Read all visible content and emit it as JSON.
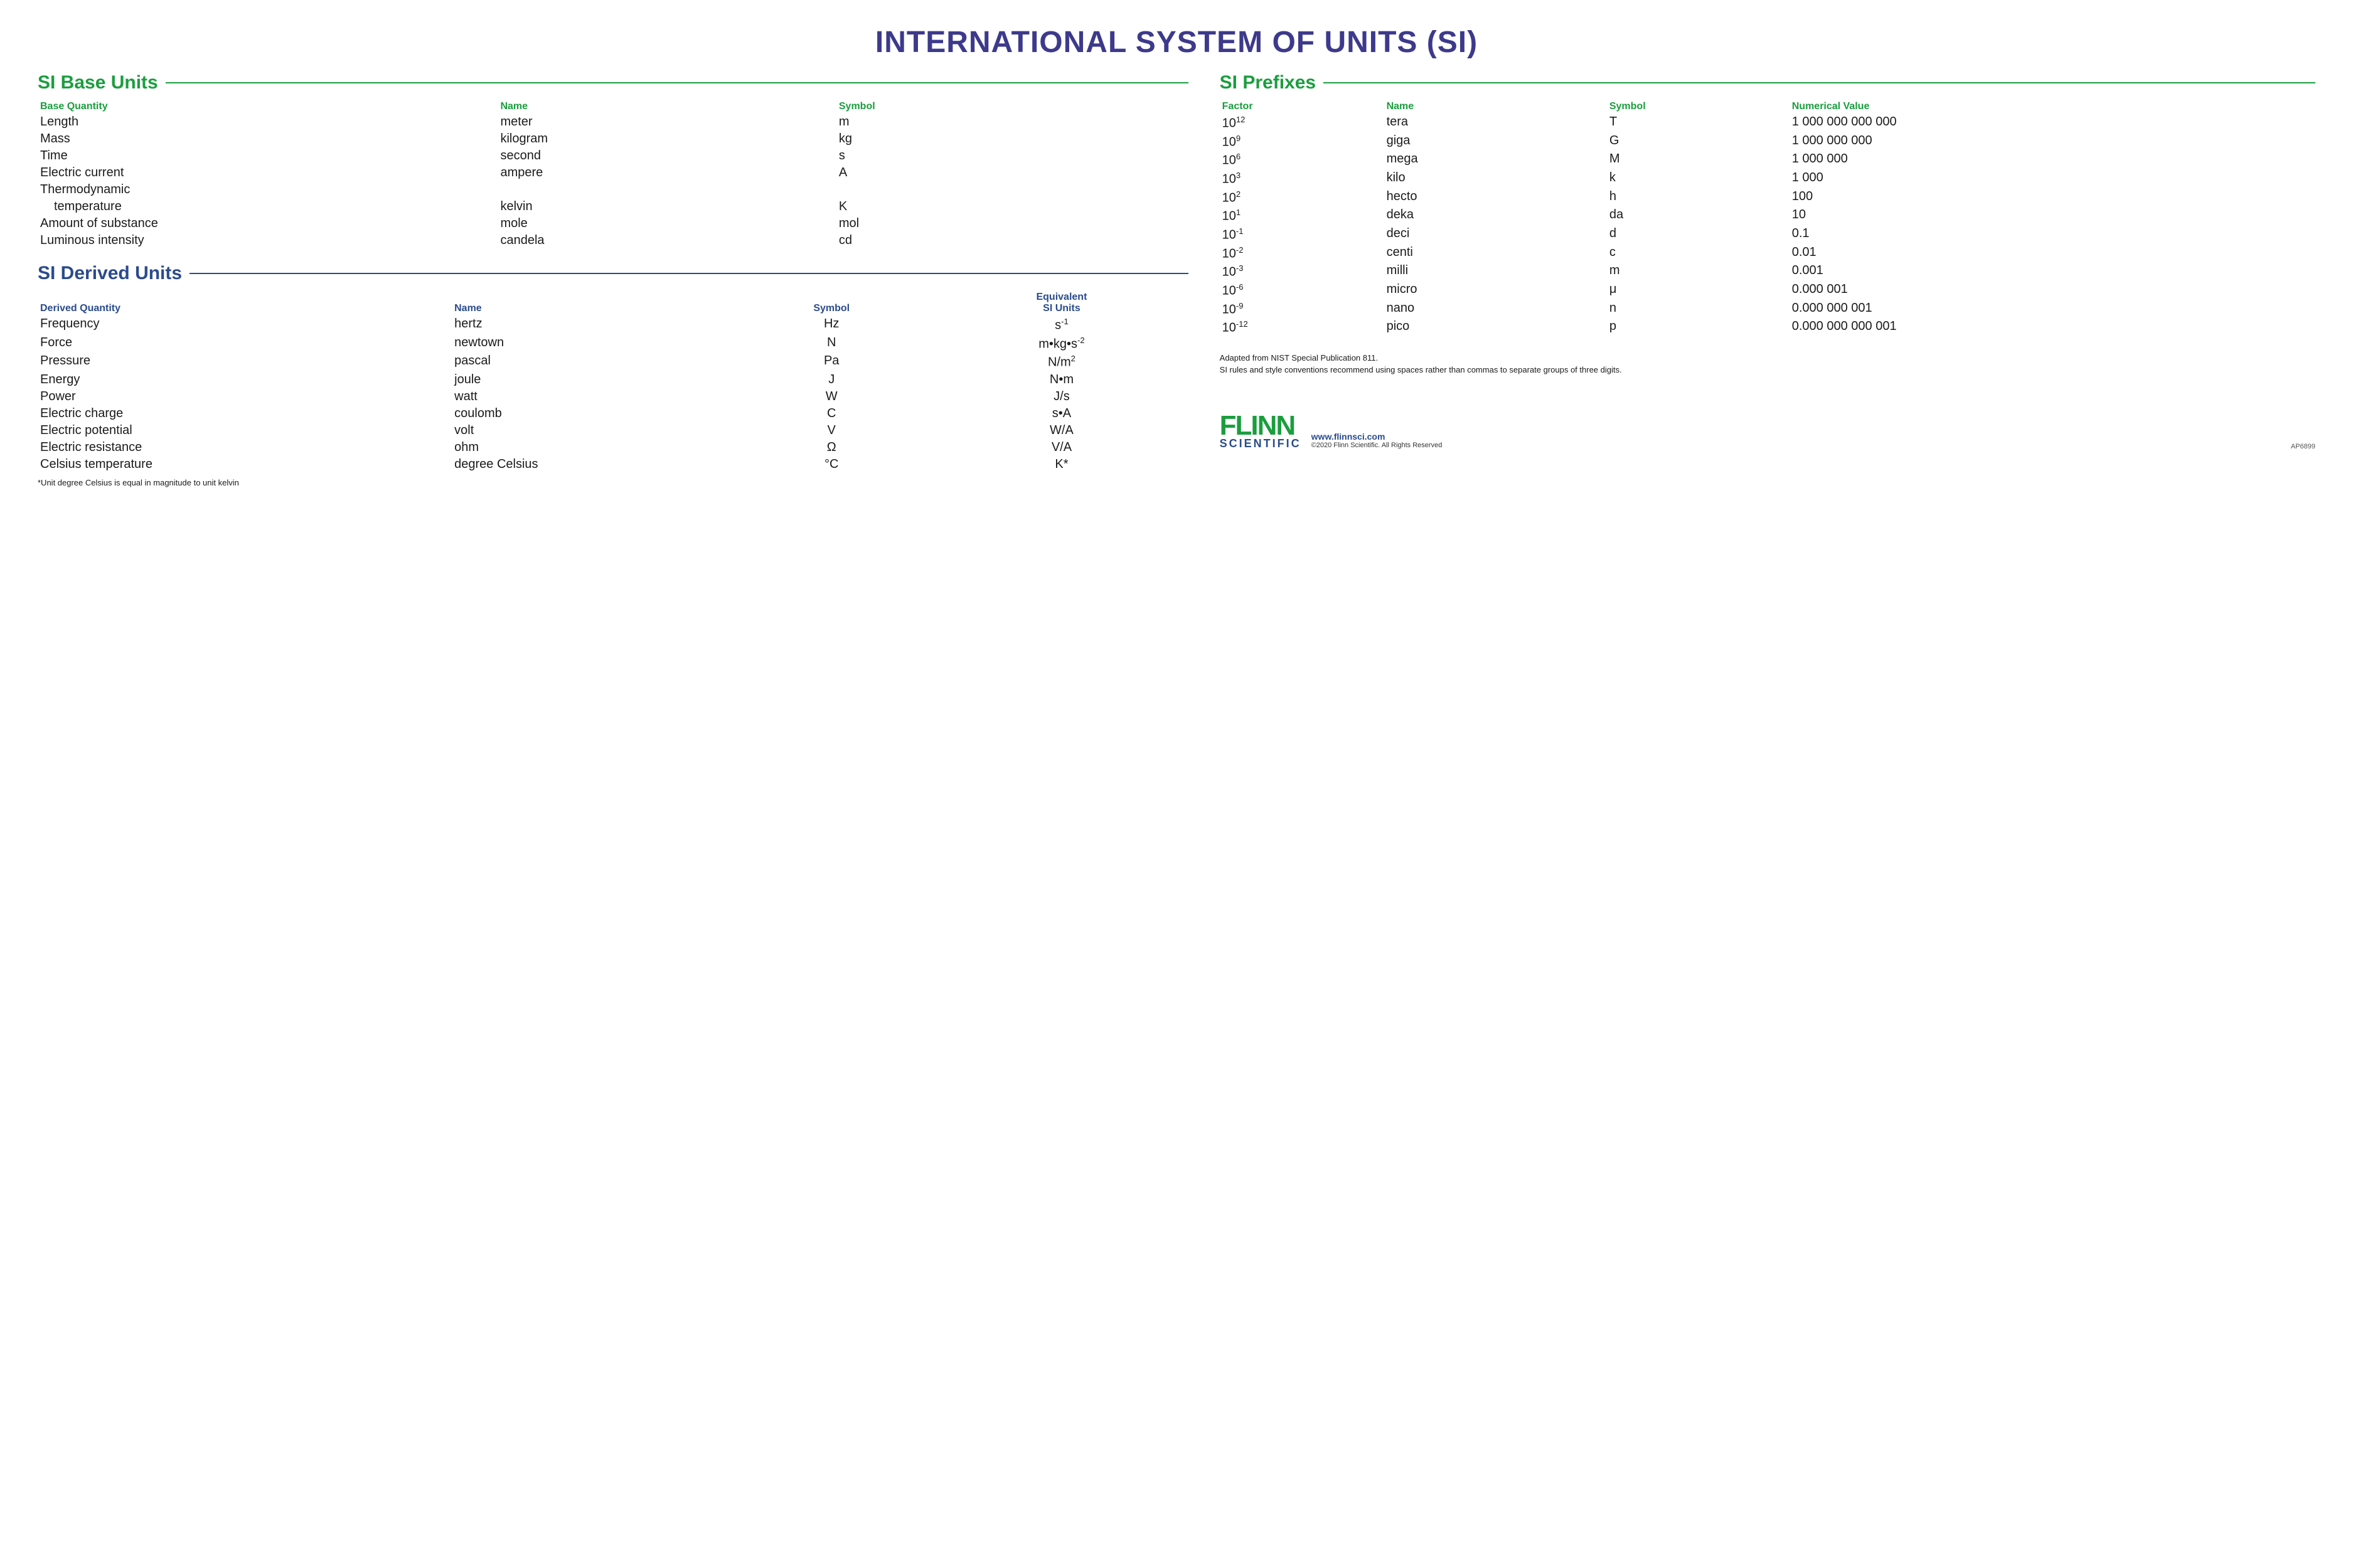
{
  "colors": {
    "title": "#3d3a8c",
    "green": "#1a9e3e",
    "blue": "#2a4b8d",
    "text": "#1a1a1a",
    "background": "#ffffff"
  },
  "title": "INTERNATIONAL SYSTEM OF UNITS (SI)",
  "baseUnits": {
    "heading": "SI Base Units",
    "columns": [
      "Base Quantity",
      "Name",
      "Symbol"
    ],
    "rows": [
      {
        "qty": "Length",
        "name": "meter",
        "sym": "m"
      },
      {
        "qty": "Mass",
        "name": "kilogram",
        "sym": "kg"
      },
      {
        "qty": "Time",
        "name": "second",
        "sym": "s"
      },
      {
        "qty": "Electric current",
        "name": "ampere",
        "sym": "A"
      },
      {
        "qty": "Thermodynamic",
        "qty2": "temperature",
        "name": "kelvin",
        "sym": "K"
      },
      {
        "qty": "Amount of substance",
        "name": "mole",
        "sym": "mol"
      },
      {
        "qty": "Luminous intensity",
        "name": "candela",
        "sym": "cd"
      }
    ]
  },
  "derivedUnits": {
    "heading": "SI Derived Units",
    "columns": [
      "Derived Quantity",
      "Name",
      "Symbol",
      "Equivalent SI Units"
    ],
    "rows": [
      {
        "qty": "Frequency",
        "name": "hertz",
        "sym": "Hz",
        "equiv": "s<sup>-1</sup>"
      },
      {
        "qty": "Force",
        "name": "newtown",
        "sym": "N",
        "equiv": "m•kg•s<sup>-2</sup>"
      },
      {
        "qty": "Pressure",
        "name": "pascal",
        "sym": "Pa",
        "equiv": "N/m<sup>2</sup>"
      },
      {
        "qty": "Energy",
        "name": "joule",
        "sym": "J",
        "equiv": "N•m"
      },
      {
        "qty": "Power",
        "name": "watt",
        "sym": "W",
        "equiv": "J/s"
      },
      {
        "qty": "Electric charge",
        "name": "coulomb",
        "sym": "C",
        "equiv": "s•A"
      },
      {
        "qty": "Electric potential",
        "name": "volt",
        "sym": "V",
        "equiv": "W/A"
      },
      {
        "qty": "Electric resistance",
        "name": "ohm",
        "sym": "Ω",
        "equiv": "V/A"
      },
      {
        "qty": "Celsius temperature",
        "name": "degree Celsius",
        "sym": "°C",
        "equiv": "K*"
      }
    ],
    "footnote": "*Unit degree Celsius is equal in magnitude to unit kelvin"
  },
  "prefixes": {
    "heading": "SI Prefixes",
    "columns": [
      "Factor",
      "Name",
      "Symbol",
      "Numerical Value"
    ],
    "rows": [
      {
        "factor": "10<sup>12</sup>",
        "name": "tera",
        "sym": "T",
        "num": "1 000 000 000 000"
      },
      {
        "factor": "10<sup>9</sup>",
        "name": "giga",
        "sym": "G",
        "num": "1 000 000 000"
      },
      {
        "factor": "10<sup>6</sup>",
        "name": "mega",
        "sym": "M",
        "num": "1 000 000"
      },
      {
        "factor": "10<sup>3</sup>",
        "name": "kilo",
        "sym": "k",
        "num": "1 000"
      },
      {
        "factor": "10<sup>2</sup>",
        "name": "hecto",
        "sym": "h",
        "num": "100"
      },
      {
        "factor": "10<sup>1</sup>",
        "name": "deka",
        "sym": "da",
        "num": "10"
      },
      {
        "factor": "10<sup>-1</sup>",
        "name": "deci",
        "sym": "d",
        "num": "0.1"
      },
      {
        "factor": "10<sup>-2</sup>",
        "name": "centi",
        "sym": "c",
        "num": "0.01"
      },
      {
        "factor": "10<sup>-3</sup>",
        "name": "milli",
        "sym": "m",
        "num": "0.001"
      },
      {
        "factor": "10<sup>-6</sup>",
        "name": "micro",
        "sym": "μ",
        "num": "0.000 001"
      },
      {
        "factor": "10<sup>-9</sup>",
        "name": "nano",
        "sym": "n",
        "num": "0.000 000 001"
      },
      {
        "factor": "10<sup>-12</sup>",
        "name": "pico",
        "sym": "p",
        "num": "0.000 000 000 001"
      }
    ]
  },
  "attribution": {
    "line1": "Adapted from NIST Special Publication 811.",
    "line2": "SI rules and style conventions recommend using spaces rather than commas to separate groups of three digits."
  },
  "footer": {
    "logoMain": "FLINN",
    "logoSub": "SCIENTIFIC",
    "url": "www.flinnsci.com",
    "copyright": "©2020 Flinn Scientific. All Rights Reserved",
    "productCode": "AP6899"
  }
}
